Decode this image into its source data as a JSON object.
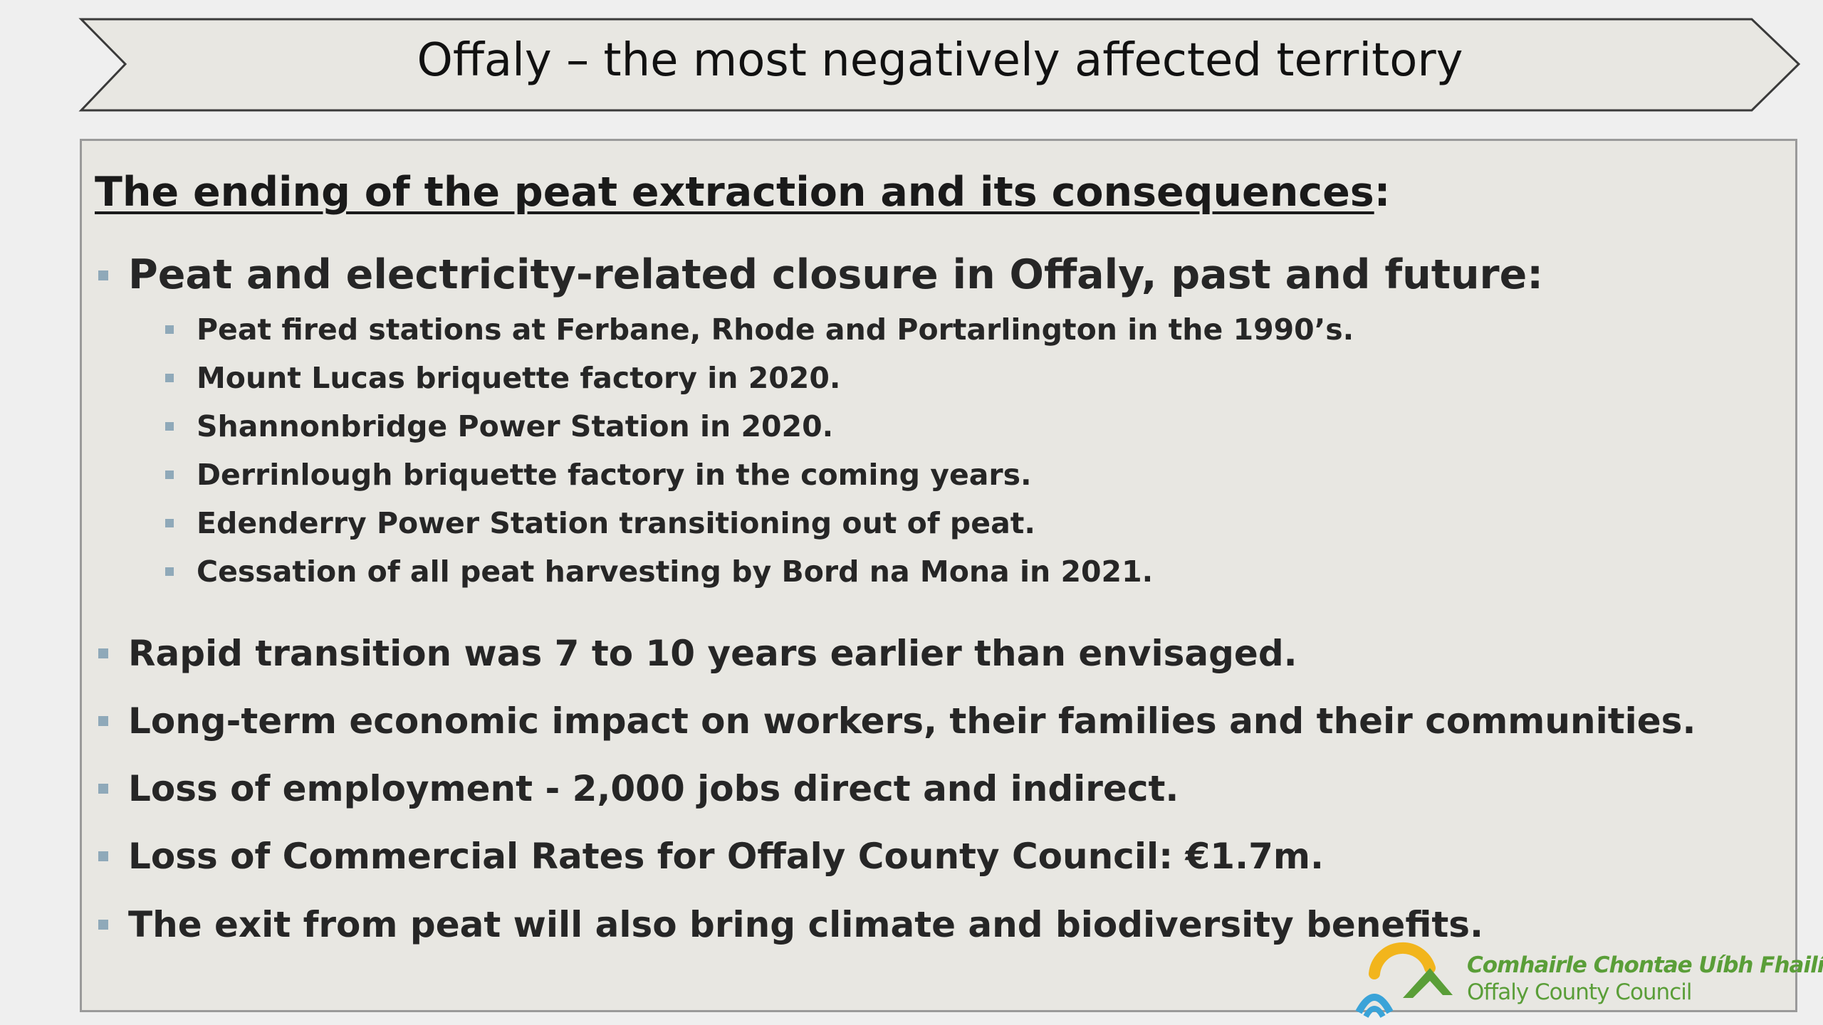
{
  "slide": {
    "title": "Offaly – the most negatively affected territory",
    "heading_underlined": "The ending of the peat extraction and its consequences",
    "heading_suffix": ":",
    "closure_heading": "Peat and electricity-related closure in Offaly, past and future:",
    "closures": [
      "Peat fired stations at Ferbane, Rhode and Portarlington in the 1990’s.",
      "Mount Lucas briquette factory in 2020.",
      "Shannonbridge Power Station in 2020.",
      "Derrinlough briquette factory in the coming years.",
      "Edenderry Power Station transitioning out of peat.",
      "Cessation of all peat harvesting by Bord na Mona in 2021."
    ],
    "points": [
      "Rapid transition was 7 to 10 years earlier than envisaged.",
      "Long-term economic impact on workers, their families and their communities.",
      "Loss of employment - 2,000 jobs direct and indirect.",
      "Loss of Commercial Rates for Offaly County Council: €1.7m.",
      "The exit from peat will also bring climate and biodiversity benefits."
    ]
  },
  "logo": {
    "irish_name": "Comhairle Chontae Uíbh Fhailí",
    "english_name": "Offaly County Council",
    "icon": "offaly-council-logo-icon"
  },
  "colors": {
    "banner_fill": "#e8e7e2",
    "panel_fill": "#e8e7e2",
    "bullet_marker": "#8fa9b9",
    "logo_green": "#5a9e38",
    "logo_yellow": "#f2b51c",
    "logo_blue": "#3aa3d8"
  }
}
